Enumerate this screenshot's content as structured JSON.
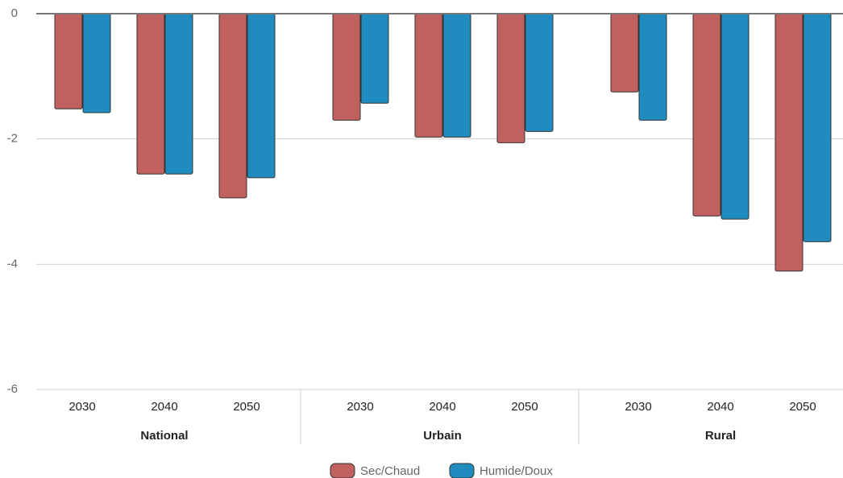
{
  "chart_data": {
    "type": "bar",
    "groups": [
      "National",
      "Urbain",
      "Rural"
    ],
    "categories": [
      "2030",
      "2040",
      "2050",
      "2030",
      "2040",
      "2050",
      "2030",
      "2040",
      "2050"
    ],
    "series": [
      {
        "name": "Sec/Chaud",
        "color": "#c0605f",
        "values": [
          -1.52,
          -2.56,
          -2.94,
          -1.7,
          -1.97,
          -2.06,
          -1.25,
          -3.23,
          -4.11
        ]
      },
      {
        "name": "Humide/Doux",
        "color": "#1f8bbf",
        "values": [
          -1.58,
          -2.56,
          -2.62,
          -1.43,
          -1.97,
          -1.88,
          -1.7,
          -3.28,
          -3.64
        ]
      }
    ],
    "ylim": [
      -6,
      0
    ],
    "yticks": [
      0,
      -2,
      -4,
      -6
    ],
    "grid": true,
    "legend": "bottom"
  }
}
